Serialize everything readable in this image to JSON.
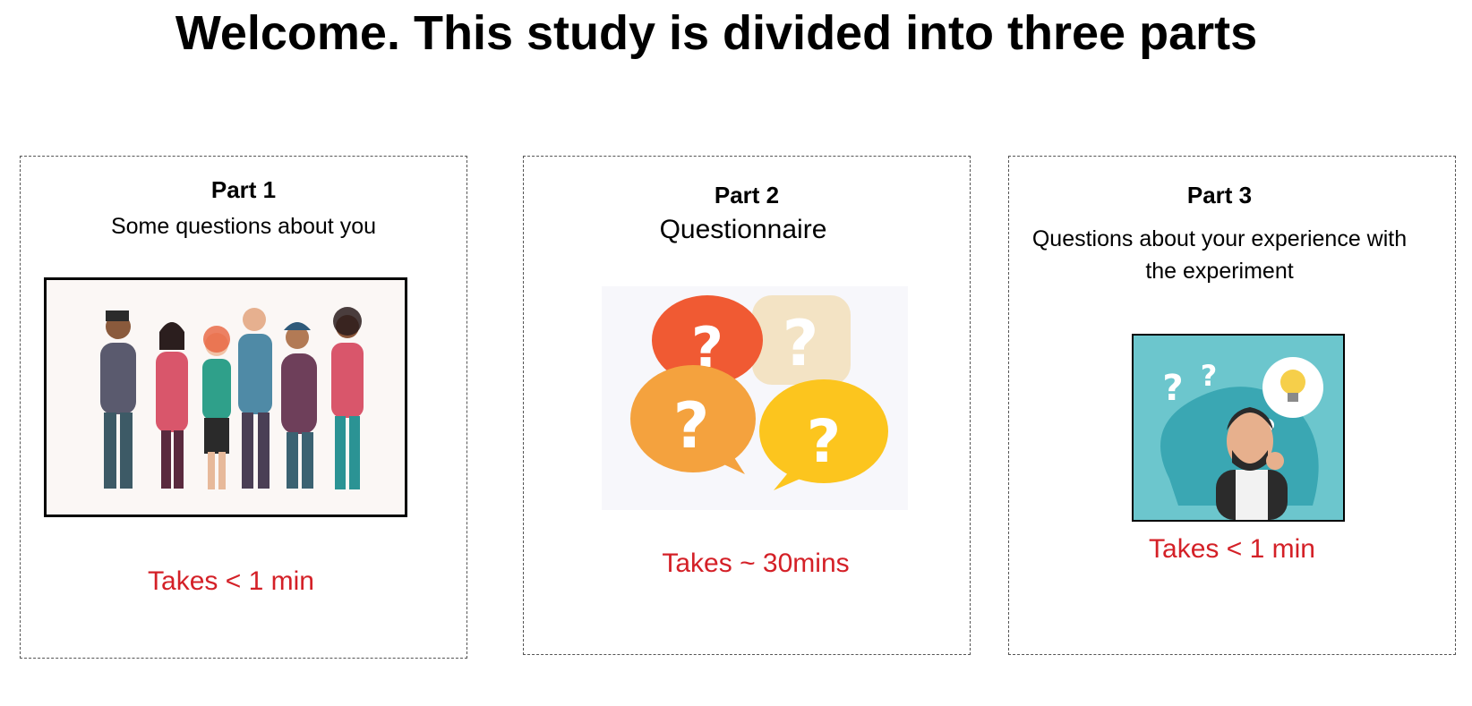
{
  "page": {
    "title": "Welcome. This study is divided into three parts"
  },
  "parts": [
    {
      "title": "Part 1",
      "subtitle": "Some questions about you",
      "duration": "Takes < 1 min",
      "illustration_icon": "group-of-people-illustration"
    },
    {
      "title": "Part 2",
      "subtitle": "Questionnaire",
      "duration": "Takes ~ 30mins",
      "illustration_icon": "question-bubbles-illustration"
    },
    {
      "title": "Part 3",
      "subtitle_line1": "Questions about your experience with",
      "subtitle_line2": "the experiment",
      "duration": "Takes < 1 min",
      "illustration_icon": "thinking-man-illustration"
    }
  ],
  "colors": {
    "duration_text": "#d42027",
    "card_border": "#555555"
  }
}
